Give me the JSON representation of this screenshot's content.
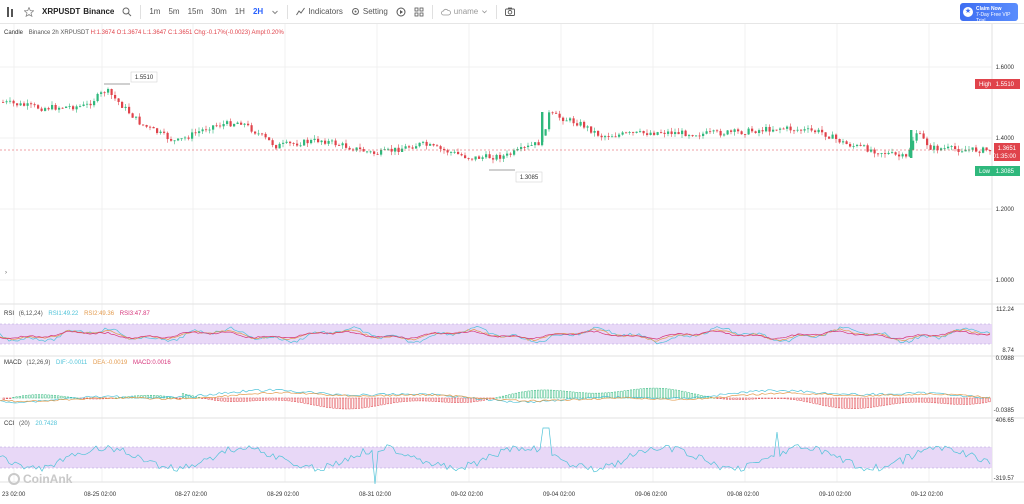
{
  "toolbar": {
    "symbol": "XRPUSDT",
    "exchange": "Binance",
    "timeframes": [
      "1m",
      "5m",
      "15m",
      "30m",
      "1H",
      "2H"
    ],
    "active_timeframe": "2H",
    "indicators_label": "Indicators",
    "setting_label": "Setting",
    "user_label": "uname",
    "promo_line1": "Claim Now",
    "promo_line2": "7-Day Free VIP Trial"
  },
  "legend": {
    "type": "Candle",
    "info": "Binance 2h XRPUSDT",
    "h": "H:1.3674",
    "o": "O:1.3674",
    "l": "L:1.3647",
    "c": "C:1.3651",
    "chg": "Chg:-0.17%(-0.0023)",
    "ampl": "Ampl:0.20%"
  },
  "price_axis": {
    "ticks": [
      "1.6000",
      "1.4000",
      "1.2000",
      "1.0000"
    ],
    "high_label": "High",
    "high_value": "1.5510",
    "low_label": "Low",
    "low_value": "1.3085",
    "current_price": "1.3651",
    "countdown": "01:35:00",
    "high_marker": "1.5510",
    "low_marker": "1.3085"
  },
  "rsi": {
    "name": "RSI",
    "params": "(6,12,24)",
    "rsi1": "RSI1:49.22",
    "rsi2": "RSI2:49.36",
    "rsi3": "RSI3:47.87",
    "axis_top": "112.24",
    "axis_bottom": "8.74"
  },
  "macd": {
    "name": "MACD",
    "params": "(12,26,9)",
    "dif": "DIF:-0.0011",
    "dea": "DEA:-0.0019",
    "macd": "MACD:0.0016",
    "axis_top": "0.0988",
    "axis_bottom": "-0.0385"
  },
  "cci": {
    "name": "CCI",
    "params": "(20)",
    "value": "20.7428",
    "axis_top": "406.65",
    "axis_bottom": "-319.57"
  },
  "time_axis": [
    "23 02:00",
    "08-25 02:00",
    "08-27 02:00",
    "08-29 02:00",
    "08-31 02:00",
    "09-02 02:00",
    "09-04 02:00",
    "09-06 02:00",
    "09-08 02:00",
    "09-10 02:00",
    "09-12 02:00"
  ],
  "watermark": "CoinAnk",
  "colors": {
    "up": "#2fb87c",
    "down": "#e0434b",
    "accent": "#2962ff",
    "rsi_band": "#e8d8f7"
  }
}
